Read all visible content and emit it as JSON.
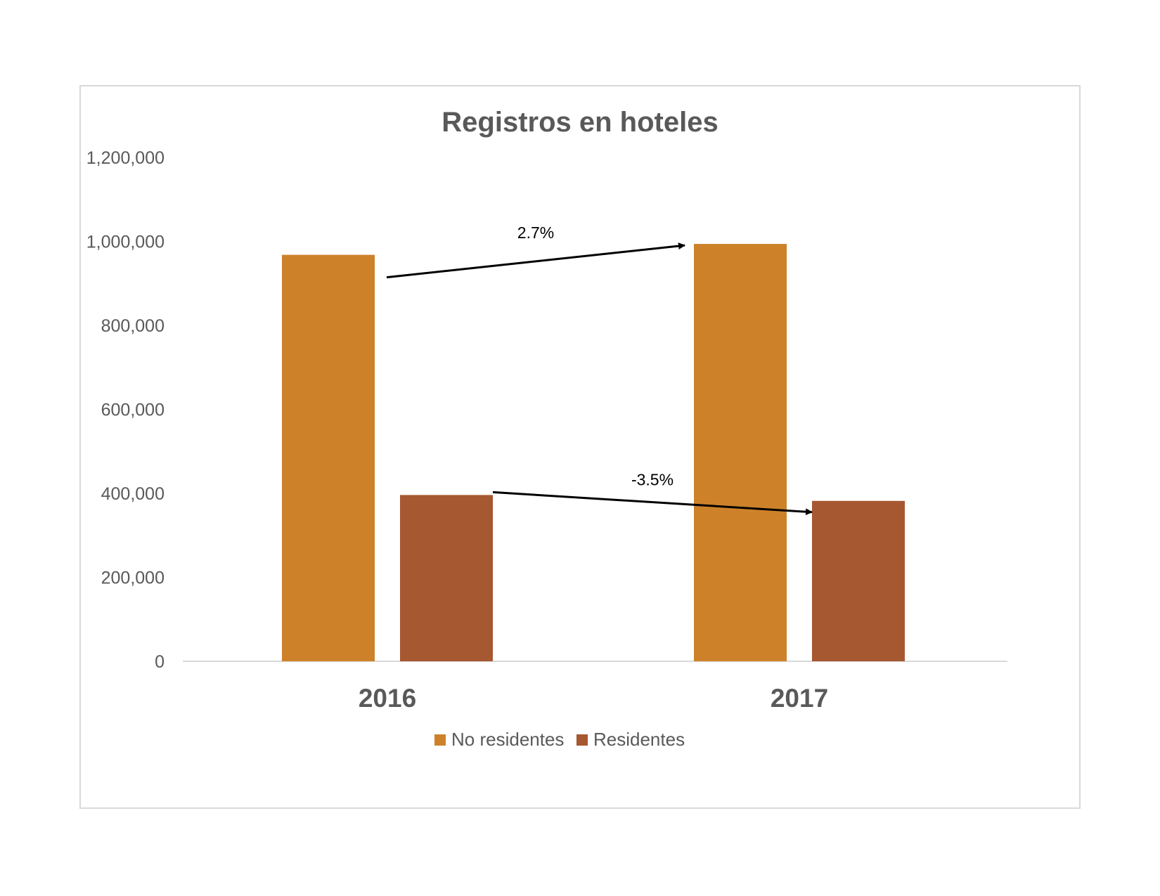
{
  "chart_data": {
    "type": "bar",
    "title": "Registros en hoteles",
    "xlabel": "",
    "ylabel": "",
    "categories": [
      "2016",
      "2017"
    ],
    "series": [
      {
        "name": "No residentes",
        "color": "#CD8229",
        "values": [
          968000,
          994000
        ]
      },
      {
        "name": "Residentes",
        "color": "#A65831",
        "values": [
          396000,
          382000
        ]
      }
    ],
    "ylim": [
      0,
      1200000
    ],
    "yticks": [
      {
        "value": 0,
        "label": "0"
      },
      {
        "value": 200000,
        "label": "200,000"
      },
      {
        "value": 400000,
        "label": "400,000"
      },
      {
        "value": 600000,
        "label": "600,000"
      },
      {
        "value": 800000,
        "label": "800,000"
      },
      {
        "value": 1000000,
        "label": "1,000,000"
      },
      {
        "value": 1200000,
        "label": "1,200,000"
      }
    ],
    "grid": false,
    "legend": "bottom",
    "annotations": [
      {
        "text": "2.7%",
        "series": "No residentes",
        "from": "2016",
        "to": "2017"
      },
      {
        "text": "-3.5%",
        "series": "Residentes",
        "from": "2016",
        "to": "2017"
      }
    ]
  }
}
